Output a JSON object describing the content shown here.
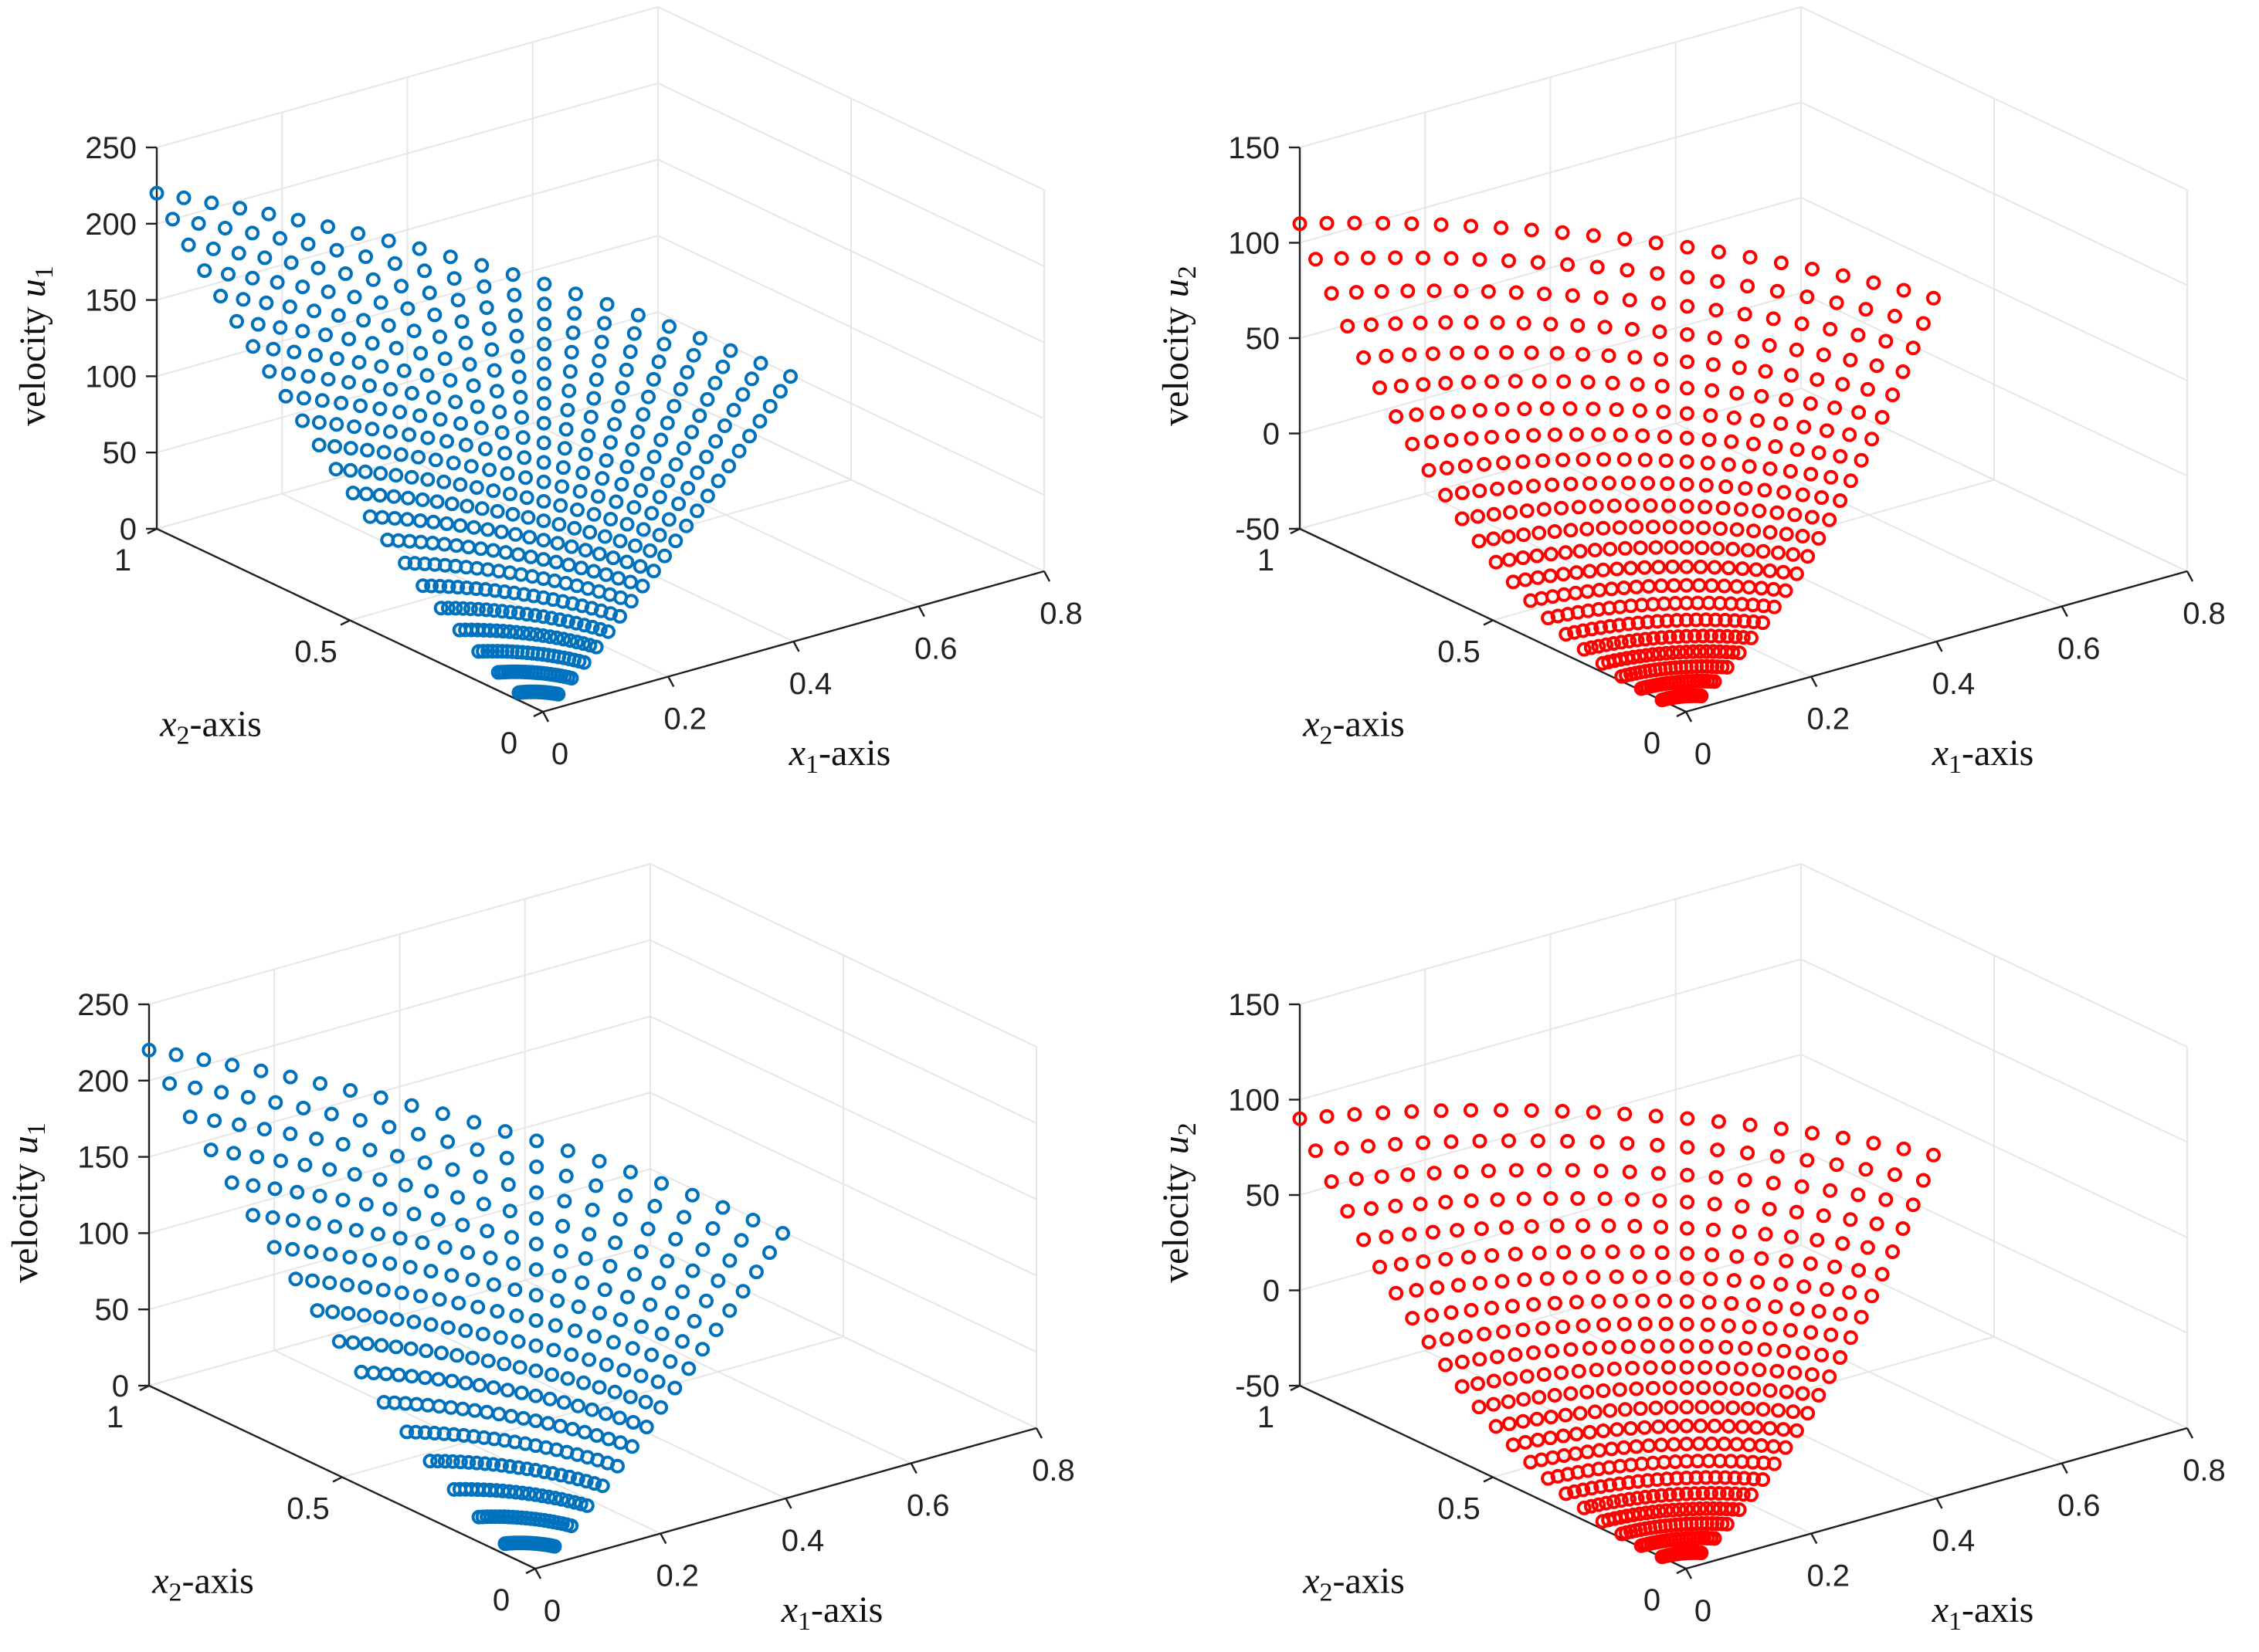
{
  "chart_data": [
    {
      "type": "scatter3d",
      "panel": "top-left",
      "marker": "o",
      "color": "#0072BD",
      "zlabel": "velocity u_1",
      "zlabel_parts": {
        "text": "velocity",
        "var": "u",
        "sub": "1"
      },
      "xlabel_parts": {
        "var": "x",
        "sub": "1",
        "text": "-axis"
      },
      "ylabel_parts": {
        "var": "x",
        "sub": "2",
        "text": "-axis"
      },
      "xlim": [
        0,
        0.8
      ],
      "ylim": [
        0,
        1
      ],
      "zlim": [
        0,
        250
      ],
      "xticks": [
        "0",
        "0.2",
        "0.4",
        "0.6",
        "0.8"
      ],
      "yticks": [
        "0",
        "0.5",
        "1"
      ],
      "zticks": [
        "0",
        "50",
        "100",
        "150",
        "200",
        "250"
      ],
      "grid": true,
      "series": {
        "sector_angle_deg": 51.3,
        "rays": 22,
        "points_per_ray": 22,
        "r_max": 1.0,
        "base_value": 220,
        "decay": 2.2,
        "values_range": [
          0,
          220
        ]
      }
    },
    {
      "type": "scatter3d",
      "panel": "top-right",
      "marker": "o",
      "color": "#FF0000",
      "zlabel": "velocity u_2",
      "zlabel_parts": {
        "text": "velocity",
        "var": "u",
        "sub": "2"
      },
      "xlabel_parts": {
        "var": "x",
        "sub": "1",
        "text": "-axis"
      },
      "ylabel_parts": {
        "var": "x",
        "sub": "2",
        "text": "-axis"
      },
      "xlim": [
        0,
        0.8
      ],
      "ylim": [
        0,
        1
      ],
      "zlim": [
        -50,
        150
      ],
      "xticks": [
        "0",
        "0.2",
        "0.4",
        "0.6",
        "0.8"
      ],
      "yticks": [
        "0",
        "0.5",
        "1"
      ],
      "zticks": [
        "-50",
        "0",
        "50",
        "100",
        "150"
      ],
      "grid": true,
      "series": {
        "sector_angle_deg": 51.3,
        "rays": 22,
        "points_per_ray": 22,
        "r_max": 1.0,
        "values_range": [
          -50,
          110
        ],
        "end_values": [
          110,
          35
        ]
      }
    },
    {
      "type": "scatter3d",
      "panel": "bottom-left",
      "marker": "o",
      "color": "#0072BD",
      "zlabel": "velocity u_1",
      "zlabel_parts": {
        "text": "velocity",
        "var": "u",
        "sub": "1"
      },
      "xlabel_parts": {
        "var": "x",
        "sub": "1",
        "text": "-axis"
      },
      "ylabel_parts": {
        "var": "x",
        "sub": "2",
        "text": "-axis"
      },
      "xlim": [
        0,
        0.8
      ],
      "ylim": [
        0,
        1
      ],
      "zlim": [
        0,
        250
      ],
      "xticks": [
        "0",
        "0.2",
        "0.4",
        "0.6",
        "0.8"
      ],
      "yticks": [
        "0",
        "0.5",
        "1"
      ],
      "zticks": [
        "0",
        "50",
        "100",
        "150",
        "200",
        "250"
      ],
      "grid": true,
      "series": {
        "sector_angle_deg": 51.3,
        "rays": 22,
        "points_per_ray": 17,
        "r_max": 1.0,
        "base_value": 220,
        "decay": 2.2,
        "values_range": [
          0,
          220
        ]
      }
    },
    {
      "type": "scatter3d",
      "panel": "bottom-right",
      "marker": "o",
      "color": "#FF0000",
      "zlabel": "velocity u_2",
      "zlabel_parts": {
        "text": "velocity",
        "var": "u",
        "sub": "2"
      },
      "xlabel_parts": {
        "var": "x",
        "sub": "1",
        "text": "-axis"
      },
      "ylabel_parts": {
        "var": "x",
        "sub": "2",
        "text": "-axis"
      },
      "xlim": [
        0,
        0.8
      ],
      "ylim": [
        0,
        1
      ],
      "zlim": [
        -50,
        150
      ],
      "xticks": [
        "0",
        "0.2",
        "0.4",
        "0.6",
        "0.8"
      ],
      "yticks": [
        "0",
        "0.5",
        "1"
      ],
      "zticks": [
        "-50",
        "0",
        "50",
        "100",
        "150"
      ],
      "grid": true,
      "series": {
        "sector_angle_deg": 51.3,
        "rays": 22,
        "points_per_ray": 22,
        "r_max": 1.0,
        "values_range": [
          -50,
          90
        ],
        "end_values": [
          90,
          35
        ]
      }
    }
  ]
}
